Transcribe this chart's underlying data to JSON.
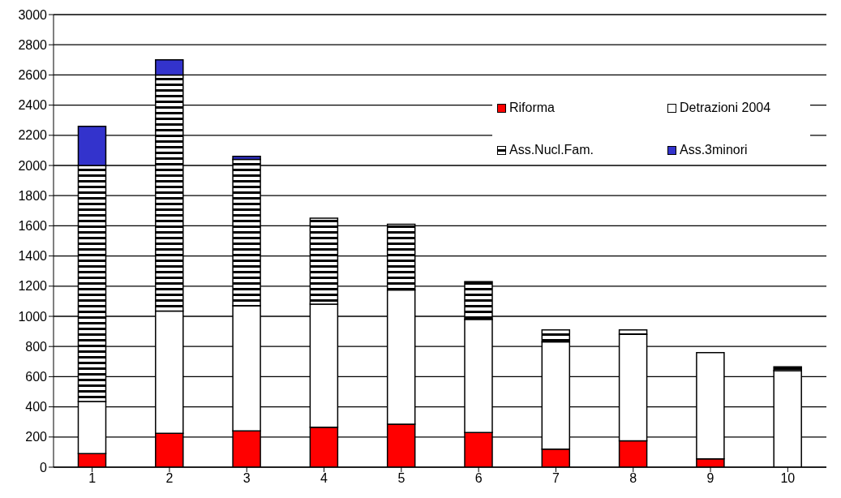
{
  "chart_data": {
    "type": "bar",
    "stacked": true,
    "categories": [
      "1",
      "2",
      "3",
      "4",
      "5",
      "6",
      "7",
      "8",
      "9",
      "10"
    ],
    "series": [
      {
        "name": "Riforma",
        "color": "#ff0000",
        "values": [
          90,
          225,
          240,
          265,
          285,
          230,
          120,
          175,
          55,
          0
        ]
      },
      {
        "name": "Detrazioni 2004",
        "color": "#ffffff",
        "values": [
          345,
          810,
          830,
          815,
          890,
          750,
          710,
          705,
          705,
          640
        ]
      },
      {
        "name": "Ass.Nucl.Fam.",
        "color": "#000000",
        "values": [
          1565,
          1565,
          970,
          570,
          435,
          250,
          80,
          30,
          0,
          25
        ]
      },
      {
        "name": "Ass.3minori",
        "color": "#3333cc",
        "values": [
          260,
          100,
          20,
          0,
          0,
          0,
          0,
          0,
          0,
          0
        ]
      }
    ],
    "ylim": [
      0,
      3000
    ],
    "yticks": [
      0,
      200,
      400,
      600,
      800,
      1000,
      1200,
      1400,
      1600,
      1800,
      2000,
      2200,
      2400,
      2600,
      2800,
      3000
    ],
    "grid": "y",
    "legend": "top right"
  }
}
